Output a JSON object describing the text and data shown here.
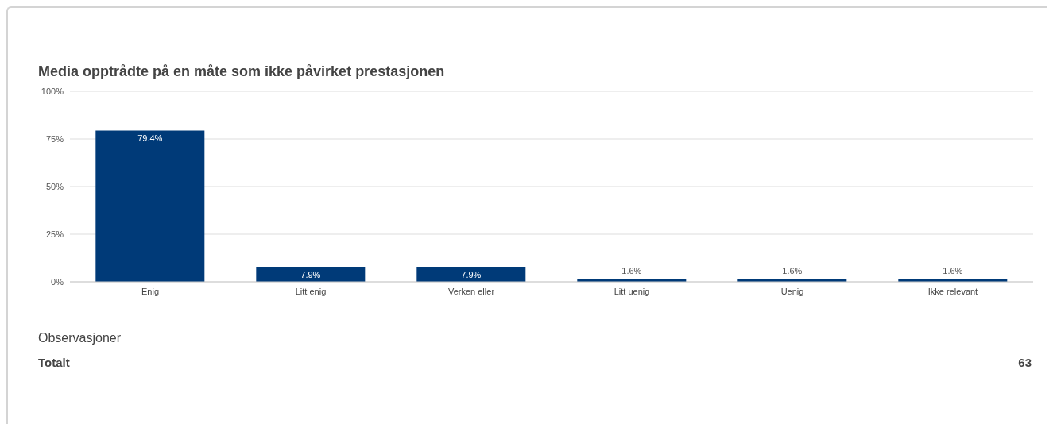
{
  "chart_data": {
    "type": "bar",
    "title": "Media opptrådte på en måte som ikke påvirket prestasjonen",
    "categories": [
      "Enig",
      "Litt enig",
      "Verken eller",
      "Litt uenig",
      "Uenig",
      "Ikke relevant"
    ],
    "values": [
      79.4,
      7.9,
      7.9,
      1.6,
      1.6,
      1.6
    ],
    "value_labels": [
      "79.4%",
      "7.9%",
      "7.9%",
      "1.6%",
      "1.6%",
      "1.6%"
    ],
    "color": "#003a78",
    "ylim": [
      0,
      100
    ],
    "yticks": [
      {
        "value": 0,
        "label": "0%"
      },
      {
        "value": 25,
        "label": "25%"
      },
      {
        "value": 50,
        "label": "50%"
      },
      {
        "value": 75,
        "label": "75%"
      },
      {
        "value": 100,
        "label": "100%"
      }
    ],
    "grid": "y",
    "annotations": [
      "Observasjoner",
      "Totalt",
      "63"
    ]
  }
}
